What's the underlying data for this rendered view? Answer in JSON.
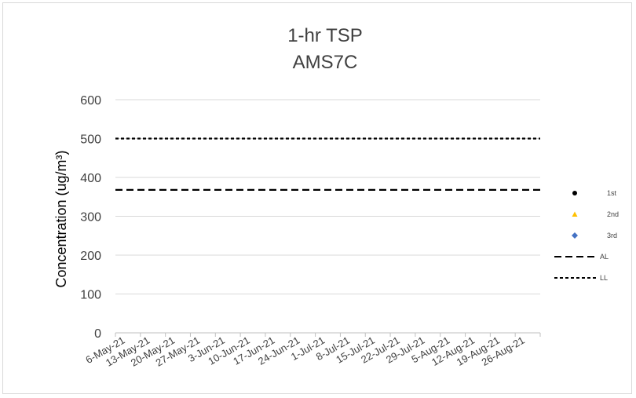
{
  "chart_data": {
    "type": "scatter",
    "title_lines": [
      "1-hr TSP",
      "AMS7C"
    ],
    "ylabel": "Concentration (ug/m³)",
    "xlabel": "",
    "ylim": [
      0,
      600
    ],
    "yticks": [
      0,
      100,
      200,
      300,
      400,
      500,
      600
    ],
    "categories": [
      "6-May-21",
      "13-May-21",
      "20-May-21",
      "27-May-21",
      "3-Jun-21",
      "10-Jun-21",
      "17-Jun-21",
      "24-Jun-21",
      "1-Jul-21",
      "8-Jul-21",
      "15-Jul-21",
      "22-Jul-21",
      "29-Jul-21",
      "5-Aug-21",
      "12-Aug-21",
      "19-Aug-21",
      "26-Aug-21"
    ],
    "grid": true,
    "legend_position": "right",
    "series": [
      {
        "name": "1st",
        "marker": "circle",
        "color": "#000000",
        "values": []
      },
      {
        "name": "2nd",
        "marker": "triangle",
        "color": "#ffc000",
        "values": []
      },
      {
        "name": "3rd",
        "marker": "diamond",
        "color": "#4472c4",
        "values": []
      },
      {
        "name": "AL",
        "style": "dashed",
        "color": "#000000",
        "value": 368
      },
      {
        "name": "LL",
        "style": "dotted",
        "color": "#000000",
        "value": 500
      }
    ]
  }
}
